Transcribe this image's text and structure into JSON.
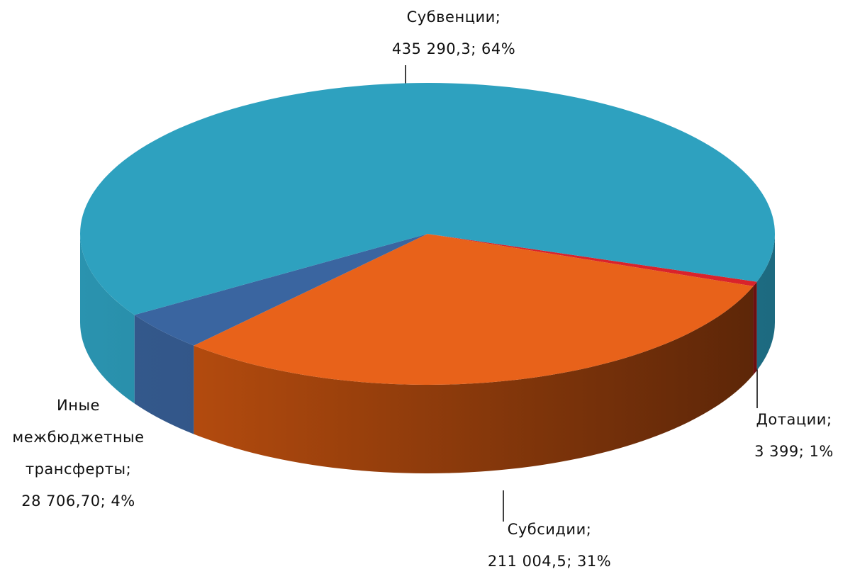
{
  "chart_data": {
    "type": "pie3d",
    "categories": [
      "Дотации",
      "Субсидии",
      "Иные межбюджетные трансферты",
      "Субвенции"
    ],
    "values": [
      3399,
      211004.5,
      28706.7,
      435290.3
    ],
    "value_labels": [
      "3 399",
      "211 004,5",
      "28 706,70",
      "435 290,3"
    ],
    "percents": [
      1,
      31,
      4,
      64
    ],
    "percent_labels": [
      "1%",
      "31%",
      "4%",
      "64%"
    ],
    "separator": ";",
    "colors": [
      "#d9232b",
      "#e8621a",
      "#3a65a0",
      "#2ea1bf"
    ],
    "side_colors": [
      [
        "#b01a20",
        "#6a1010"
      ],
      [
        "#c4520f",
        "#5a2508"
      ],
      [
        "#34598d",
        "#2c4a75"
      ],
      [
        "#2a93af",
        "#1d6a80"
      ]
    ]
  }
}
